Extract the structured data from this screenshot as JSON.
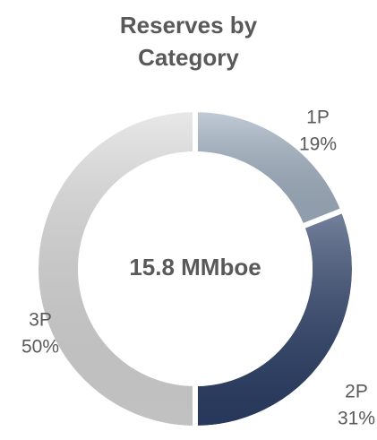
{
  "chart_data": {
    "type": "donut",
    "title": "Reserves by Category",
    "center_label": "15.8 MMboe",
    "categories": [
      "1P",
      "2P",
      "3P"
    ],
    "values": [
      19,
      31,
      50
    ],
    "value_labels": [
      "19%",
      "31%",
      "50%"
    ],
    "colors": [
      "#a3b3c4",
      "#2b3f68",
      "#dcdcdc"
    ]
  }
}
